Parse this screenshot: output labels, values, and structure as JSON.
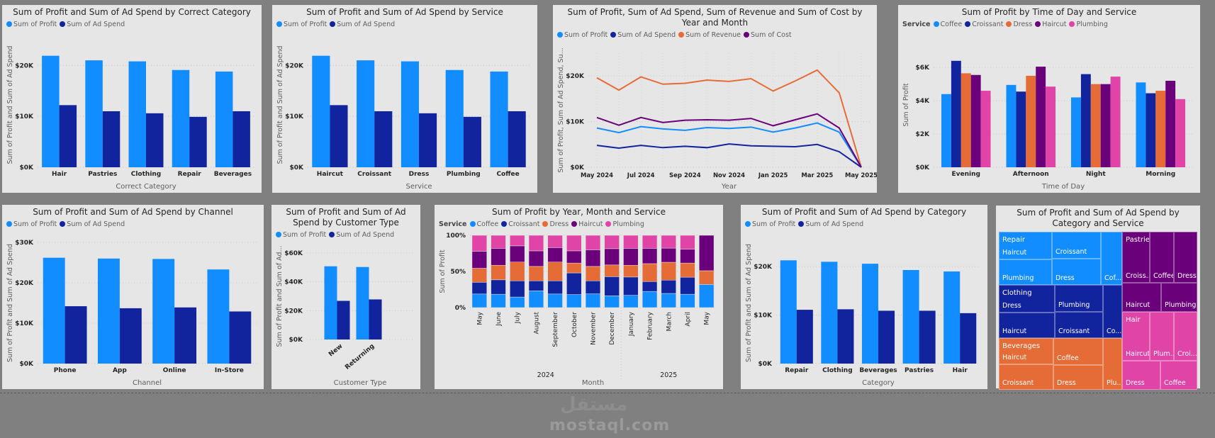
{
  "colors": {
    "profit": "#118dff",
    "ad": "#12239e",
    "revenue": "#e66c37",
    "cost": "#6b007b",
    "Coffee": "#118dff",
    "Croissant": "#12239e",
    "Dress": "#e66c37",
    "Haircut": "#6b007b",
    "Plumbing": "#e044a7",
    "Repair": "#118dff",
    "Clothing": "#12239e",
    "Beverages": "#e66c37",
    "Pastries": "#6b007b",
    "Hair": "#e044a7"
  },
  "chart_data": [
    {
      "type": "bar",
      "title": "Sum of Profit and Sum of Ad Spend by Correct Category",
      "xlabel": "Correct Category",
      "ylabel": "Sum of Profit and Sum of Ad Spend",
      "categories": [
        "Hair",
        "Pastries",
        "Clothing",
        "Repair",
        "Beverages"
      ],
      "series": [
        {
          "name": "Sum of Profit",
          "key": "profit",
          "values": [
            21.9,
            21.0,
            20.8,
            19.1,
            18.8
          ]
        },
        {
          "name": "Sum of Ad Spend",
          "key": "ad",
          "values": [
            12.2,
            11.0,
            10.6,
            9.9,
            11.0
          ]
        }
      ],
      "ylim": [
        0,
        24.5
      ],
      "yticks": [
        0,
        10,
        20
      ],
      "ytick_labels": [
        "$0K",
        "$10K",
        "$20K"
      ]
    },
    {
      "type": "bar",
      "title": "Sum of Profit and Sum of Ad Spend by Service",
      "xlabel": "Service",
      "ylabel": "Sum of Profit and Sum of Ad Spend",
      "categories": [
        "Haircut",
        "Croissant",
        "Dress",
        "Plumbing",
        "Coffee"
      ],
      "series": [
        {
          "name": "Sum of Profit",
          "key": "profit",
          "values": [
            21.9,
            21.0,
            20.8,
            19.1,
            18.8
          ]
        },
        {
          "name": "Sum of Ad Spend",
          "key": "ad",
          "values": [
            12.2,
            11.0,
            10.6,
            9.9,
            11.0
          ]
        }
      ],
      "ylim": [
        0,
        24.5
      ],
      "yticks": [
        0,
        10,
        20
      ],
      "ytick_labels": [
        "$0K",
        "$10K",
        "$20K"
      ]
    },
    {
      "type": "line",
      "title": "Sum of Profit, Sum of Ad Spend, Sum of Revenue and Sum of Cost by Year and Month",
      "xlabel": "Year",
      "ylabel": "Sum of Profit, Sum of Ad Spend, Su...",
      "x": [
        "May 2024",
        "Jun 2024",
        "Jul 2024",
        "Aug 2024",
        "Sep 2024",
        "Oct 2024",
        "Nov 2024",
        "Dec 2024",
        "Jan 2025",
        "Feb 2025",
        "Mar 2025",
        "Apr 2025",
        "May 2025"
      ],
      "xtick_labels": [
        "May 2024",
        "",
        "Jul 2024",
        "",
        "Sep 2024",
        "",
        "Nov 2024",
        "",
        "Jan 2025",
        "",
        "Mar 2025",
        "",
        "May 2025"
      ],
      "series": [
        {
          "name": "Sum of Profit",
          "key": "profit",
          "values": [
            8.6,
            7.6,
            8.9,
            8.4,
            8.1,
            8.7,
            8.5,
            8.8,
            7.7,
            8.6,
            9.7,
            7.7,
            0
          ]
        },
        {
          "name": "Sum of Ad Spend",
          "key": "ad",
          "values": [
            4.8,
            4.2,
            4.8,
            4.3,
            4.6,
            4.3,
            5.1,
            4.7,
            4.6,
            4.5,
            5.0,
            3.4,
            0
          ]
        },
        {
          "name": "Sum of Revenue",
          "key": "revenue",
          "values": [
            19.6,
            16.9,
            19.8,
            18.2,
            18.4,
            19.1,
            18.8,
            19.4,
            16.7,
            18.9,
            21.3,
            16.3,
            0
          ]
        },
        {
          "name": "Sum of Cost",
          "key": "cost",
          "values": [
            10.9,
            9.2,
            10.9,
            9.8,
            10.3,
            10.4,
            10.3,
            10.7,
            9.1,
            10.4,
            11.7,
            8.6,
            0
          ]
        }
      ],
      "ylim": [
        0,
        25
      ],
      "yticks": [
        0,
        10,
        20
      ],
      "ytick_labels": [
        "$0K",
        "$10K",
        "$20K"
      ]
    },
    {
      "type": "bar",
      "title": "Sum of Profit by Time of Day and Service",
      "legend_title": "Service",
      "xlabel": "Time of Day",
      "ylabel": "Sum of Profit",
      "categories": [
        "Evening",
        "Afternoon",
        "Night",
        "Morning"
      ],
      "series": [
        {
          "name": "Coffee",
          "key": "Coffee",
          "values": [
            4.4,
            4.95,
            4.2,
            5.1
          ]
        },
        {
          "name": "Croissant",
          "key": "Croissant",
          "values": [
            6.4,
            4.55,
            5.6,
            4.45
          ]
        },
        {
          "name": "Dress",
          "key": "Dress",
          "values": [
            5.65,
            5.5,
            5.0,
            4.6
          ]
        },
        {
          "name": "Haircut",
          "key": "Haircut",
          "values": [
            5.55,
            6.05,
            5.0,
            5.2
          ]
        },
        {
          "name": "Plumbing",
          "key": "Plumbing",
          "values": [
            4.6,
            4.85,
            5.45,
            4.1
          ]
        }
      ],
      "ylim": [
        0,
        7.5
      ],
      "yticks": [
        0,
        2,
        4,
        6
      ],
      "ytick_labels": [
        "$0K",
        "$2K",
        "$4K",
        "$6K"
      ]
    },
    {
      "type": "bar",
      "title": "Sum of Profit and Sum of Ad Spend by Channel",
      "xlabel": "Channel",
      "ylabel": "Sum of Profit and Sum of Ad Spend",
      "categories": [
        "Phone",
        "App",
        "Online",
        "In-Store"
      ],
      "series": [
        {
          "name": "Sum of Profit",
          "key": "profit",
          "values": [
            26.2,
            26.0,
            25.9,
            23.3
          ]
        },
        {
          "name": "Sum of Ad Spend",
          "key": "ad",
          "values": [
            14.2,
            13.7,
            13.9,
            12.9
          ]
        }
      ],
      "ylim": [
        0,
        30
      ],
      "yticks": [
        0,
        10,
        20,
        30
      ],
      "ytick_labels": [
        "$0K",
        "$10K",
        "$20K",
        "$30K"
      ]
    },
    {
      "type": "bar",
      "title": "Sum of Profit and Sum of Ad Spend by Customer Type",
      "xlabel": "Customer Type",
      "ylabel": "Sum of Profit and Sum of Ad...",
      "categories": [
        "New",
        "Returning"
      ],
      "series": [
        {
          "name": "Sum of Profit",
          "key": "profit",
          "values": [
            50.8,
            50.3
          ]
        },
        {
          "name": "Sum of Ad Spend",
          "key": "ad",
          "values": [
            26.8,
            27.8
          ]
        }
      ],
      "ylim": [
        0,
        60
      ],
      "yticks": [
        0,
        20,
        40,
        60
      ],
      "ytick_labels": [
        "$0K",
        "$20K",
        "$40K",
        "$60K"
      ]
    },
    {
      "type": "bar",
      "stacked": "percent",
      "title": "Sum of Profit by Year, Month and Service",
      "legend_title": "Service",
      "xlabel": "Month",
      "ylabel": "Sum of Profit",
      "categories": [
        "May",
        "June",
        "July",
        "August",
        "September",
        "October",
        "November",
        "December",
        "January",
        "February",
        "March",
        "April",
        "May"
      ],
      "years": [
        {
          "label": "2024",
          "count": 8
        },
        {
          "label": "2025",
          "count": 5
        }
      ],
      "series": [
        {
          "name": "Coffee",
          "key": "Coffee",
          "values": [
            18.8,
            18.5,
            14.6,
            23.2,
            18.8,
            18,
            19,
            16.3,
            17,
            22.4,
            19.6,
            18.5,
            32
          ]
        },
        {
          "name": "Croissant",
          "key": "Croissant",
          "values": [
            16.2,
            19.9,
            22.4,
            13.8,
            18.2,
            30,
            18,
            26.5,
            25.3,
            13.6,
            18.4,
            23.5,
            0
          ]
        },
        {
          "name": "Dress",
          "key": "Dress",
          "values": [
            19.4,
            20.2,
            26,
            20,
            26,
            13.6,
            20,
            16.2,
            16.3,
            24.8,
            24.7,
            19.6,
            19
          ]
        },
        {
          "name": "Haircut",
          "key": "Haircut",
          "values": [
            23.6,
            23.4,
            22.4,
            21.5,
            20,
            16.9,
            23,
            22.5,
            23.4,
            21.2,
            19.6,
            19.3,
            49
          ]
        },
        {
          "name": "Plumbing",
          "key": "Plumbing",
          "values": [
            22,
            18,
            14.6,
            21.5,
            17,
            21.5,
            20,
            18.5,
            18,
            18,
            17.7,
            19.1,
            0
          ]
        }
      ],
      "ylim": [
        0,
        100
      ],
      "yticks": [
        0,
        50,
        100
      ],
      "ytick_labels": [
        "0%",
        "50%",
        "100%"
      ]
    },
    {
      "type": "bar",
      "title": "Sum of Profit and Sum of Ad Spend by Category",
      "xlabel": "Category",
      "ylabel": "Sum of Profit and Sum of Ad Spend",
      "categories": [
        "Repair",
        "Clothing",
        "Beverages",
        "Pastries",
        "Hair"
      ],
      "series": [
        {
          "name": "Sum of Profit",
          "key": "profit",
          "values": [
            21.3,
            21.0,
            20.6,
            19.3,
            19.0
          ]
        },
        {
          "name": "Sum of Ad Spend",
          "key": "ad",
          "values": [
            11.1,
            11.2,
            10.9,
            10.9,
            10.4
          ]
        }
      ],
      "ylim": [
        0,
        25
      ],
      "yticks": [
        0,
        10,
        20
      ],
      "ytick_labels": [
        "$0K",
        "$10K",
        "$20K"
      ]
    }
  ],
  "treemap": {
    "title": "Sum of Profit and Sum of Ad Spend by Category and Service",
    "groups": [
      {
        "category": "Repair",
        "cells": [
          "Haircut",
          "Plumbing",
          "Croissant",
          "Dress",
          "Cof..."
        ]
      },
      {
        "category": "Clothing",
        "cells": [
          "Dress",
          "Haircut",
          "Plumbing",
          "Croissant",
          "Co..."
        ]
      },
      {
        "category": "Beverages",
        "cells": [
          "Haircut",
          "Croissant",
          "Coffee",
          "Dress",
          "Plu..."
        ]
      },
      {
        "category": "Pastries",
        "cells": [
          "Croiss...",
          "Coffee",
          "Dress",
          "Haircut",
          "Plumbing"
        ]
      },
      {
        "category": "Hair",
        "cells": [
          "Haircut",
          "Plum...",
          "Croi...",
          "Dress",
          "Coffee"
        ]
      }
    ]
  },
  "watermark": {
    "arabic": "مستقل",
    "site": "mostaql.com"
  }
}
